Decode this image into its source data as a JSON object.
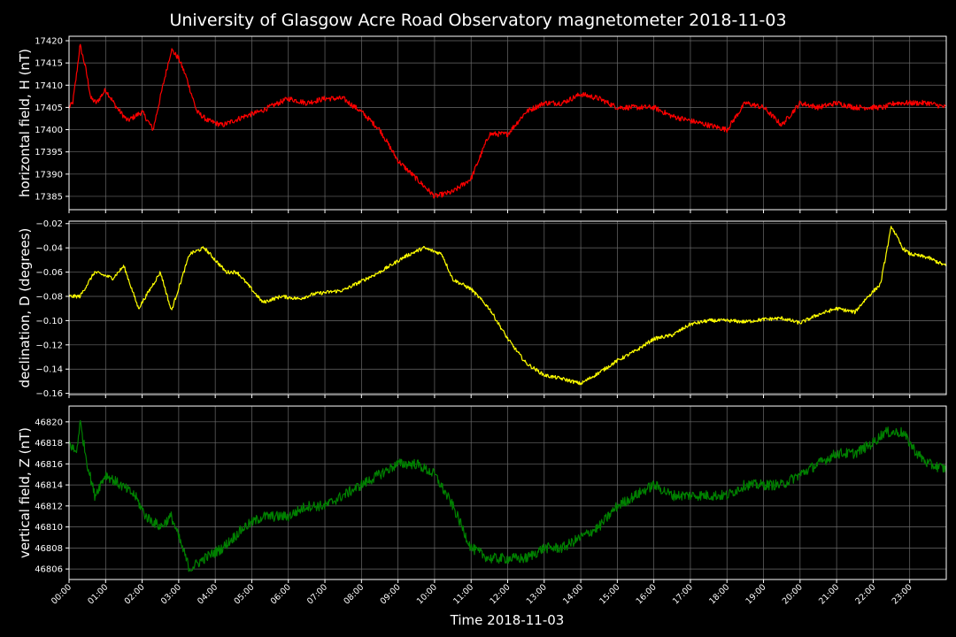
{
  "chart_data": {
    "type": "line",
    "title": "University of Glasgow Acre Road Observatory magnetometer 2018-11-03",
    "xlabel": "Time 2018-11-03",
    "xticks": [
      "00:00",
      "01:00",
      "02:00",
      "03:00",
      "04:00",
      "05:00",
      "06:00",
      "07:00",
      "08:00",
      "09:00",
      "10:00",
      "11:00",
      "12:00",
      "13:00",
      "14:00",
      "15:00",
      "16:00",
      "17:00",
      "18:00",
      "19:00",
      "20:00",
      "21:00",
      "22:00",
      "23:00"
    ],
    "grid": true,
    "panels": [
      {
        "name": "horizontal",
        "ylabel": "horizontal field, H (nT)",
        "color": "#ff0000",
        "ylim": [
          17382,
          17421
        ],
        "yticks": [
          17385,
          17390,
          17395,
          17400,
          17405,
          17410,
          17415,
          17420
        ],
        "ytick_labels": [
          "17385",
          "17390",
          "17395",
          "17400",
          "17405",
          "17410",
          "17415",
          "17420"
        ],
        "noise": 0.6,
        "x": [
          0,
          0.1,
          0.2,
          0.3,
          0.45,
          0.6,
          0.75,
          1.0,
          1.3,
          1.6,
          2.0,
          2.3,
          2.6,
          2.8,
          3.0,
          3.2,
          3.5,
          3.8,
          4.2,
          4.8,
          5.2,
          6.0,
          6.5,
          7.0,
          7.5,
          8.0,
          8.5,
          9.0,
          9.5,
          10.0,
          10.5,
          11.0,
          11.2,
          11.5,
          12.0,
          12.5,
          13.0,
          13.5,
          14.0,
          14.5,
          15.0,
          15.5,
          16.0,
          16.5,
          17.0,
          17.5,
          18.0,
          18.5,
          19.0,
          19.5,
          20.0,
          20.5,
          21.0,
          21.5,
          22.0,
          22.3,
          22.6,
          22.9,
          23.2,
          23.5,
          24.0
        ],
        "y": [
          17405,
          17406,
          17412,
          17419,
          17414,
          17407,
          17406,
          17409,
          17405,
          17402,
          17404,
          17400,
          17411,
          17418,
          17416,
          17412,
          17404,
          17402,
          17401,
          17403,
          17404,
          17407,
          17406,
          17407,
          17407,
          17404,
          17400,
          17393,
          17389,
          17385,
          17386,
          17389,
          17393,
          17399,
          17399,
          17404,
          17406,
          17406,
          17408,
          17407,
          17405,
          17405,
          17405,
          17403,
          17402,
          17401,
          17400,
          17406,
          17405,
          17401,
          17406,
          17405,
          17406,
          17405,
          17405,
          17405,
          17406,
          17406,
          17406,
          17406,
          17405
        ]
      },
      {
        "name": "declination",
        "ylabel": "declination, D (degrees)",
        "color": "#ffff00",
        "ylim": [
          -0.161,
          -0.018
        ],
        "yticks": [
          -0.16,
          -0.14,
          -0.12,
          -0.1,
          -0.08,
          -0.06,
          -0.04,
          -0.02
        ],
        "ytick_labels": [
          "−0.16",
          "−0.14",
          "−0.12",
          "−0.10",
          "−0.08",
          "−0.06",
          "−0.04",
          "−0.02"
        ],
        "noise": 0.0015,
        "x": [
          0,
          0.3,
          0.7,
          1.2,
          1.5,
          1.9,
          2.5,
          2.8,
          3.3,
          3.7,
          4.3,
          4.6,
          5.3,
          5.8,
          6.3,
          6.7,
          7.5,
          8.5,
          9.2,
          9.7,
          10.2,
          10.5,
          11.0,
          11.5,
          12.0,
          12.5,
          13.0,
          13.5,
          14.0,
          14.5,
          15.0,
          15.5,
          16.0,
          16.5,
          17.0,
          17.5,
          18.0,
          18.5,
          19.0,
          19.5,
          20.0,
          20.5,
          21.0,
          21.5,
          21.8,
          22.0,
          22.2,
          22.5,
          22.8,
          23.0,
          23.5,
          24.0
        ],
        "y": [
          -0.08,
          -0.08,
          -0.06,
          -0.065,
          -0.055,
          -0.09,
          -0.06,
          -0.092,
          -0.045,
          -0.04,
          -0.06,
          -0.06,
          -0.085,
          -0.08,
          -0.082,
          -0.078,
          -0.075,
          -0.06,
          -0.047,
          -0.04,
          -0.045,
          -0.066,
          -0.074,
          -0.09,
          -0.115,
          -0.135,
          -0.145,
          -0.148,
          -0.152,
          -0.143,
          -0.133,
          -0.125,
          -0.115,
          -0.112,
          -0.103,
          -0.1,
          -0.1,
          -0.101,
          -0.099,
          -0.098,
          -0.102,
          -0.095,
          -0.09,
          -0.093,
          -0.082,
          -0.076,
          -0.07,
          -0.022,
          -0.04,
          -0.045,
          -0.048,
          -0.055
        ]
      },
      {
        "name": "vertical",
        "ylabel": "vertical field, Z (nT)",
        "color": "#008000",
        "ylim": [
          46805,
          46821.5
        ],
        "yticks": [
          46806,
          46808,
          46810,
          46812,
          46814,
          46816,
          46818,
          46820
        ],
        "ytick_labels": [
          "46806",
          "46808",
          "46810",
          "46812",
          "46814",
          "46816",
          "46818",
          "46820"
        ],
        "noise": 0.5,
        "x": [
          0,
          0.2,
          0.3,
          0.5,
          0.7,
          1.0,
          1.4,
          1.8,
          2.1,
          2.5,
          2.8,
          3.1,
          3.3,
          3.7,
          4.2,
          4.8,
          5.3,
          6.0,
          6.5,
          7.0,
          7.5,
          8.0,
          8.5,
          9.0,
          9.5,
          10.0,
          10.5,
          11.0,
          11.5,
          12.0,
          12.5,
          13.0,
          13.5,
          14.0,
          14.5,
          15.0,
          15.5,
          16.0,
          16.5,
          17.0,
          17.5,
          18.0,
          18.5,
          19.0,
          19.5,
          20.0,
          20.5,
          21.0,
          21.5,
          22.0,
          22.3,
          22.5,
          22.8,
          23.2,
          23.5,
          24.0
        ],
        "y": [
          46818,
          46817,
          46820,
          46816,
          46813,
          46815,
          46814,
          46813,
          46811,
          46810,
          46811,
          46808,
          46806,
          46807,
          46808,
          46810,
          46811,
          46811,
          46812,
          46812,
          46813,
          46814,
          46815,
          46816,
          46816,
          46815,
          46812,
          46808,
          46807,
          46807,
          46807,
          46808,
          46808,
          46809,
          46810,
          46812,
          46813,
          46814,
          46813,
          46813,
          46813,
          46813,
          46814,
          46814,
          46814,
          46815,
          46816,
          46817,
          46817,
          46818,
          46819,
          46819,
          46819,
          46817,
          46816,
          46815.5
        ]
      }
    ]
  }
}
